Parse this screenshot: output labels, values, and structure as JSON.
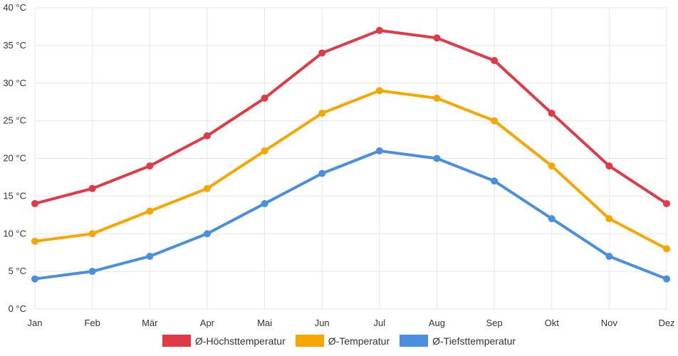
{
  "chart_data": {
    "type": "line",
    "categories": [
      "Jan",
      "Feb",
      "Mär",
      "Apr",
      "Mai",
      "Jun",
      "Jul",
      "Aug",
      "Sep",
      "Okt",
      "Nov",
      "Dez"
    ],
    "series": [
      {
        "name": "Ø-Höchsttemperatur",
        "color": "#e03a45",
        "values": [
          14,
          16,
          19,
          23,
          28,
          34,
          37,
          36,
          33,
          26,
          19,
          14
        ]
      },
      {
        "name": "Ø-Temperatur",
        "color": "#f7a600",
        "values": [
          9,
          10,
          13,
          16,
          21,
          26,
          29,
          28,
          25,
          19,
          12,
          8
        ]
      },
      {
        "name": "Ø-Tiefsttemperatur",
        "color": "#4a8fdf",
        "values": [
          4,
          5,
          7,
          10,
          14,
          18,
          21,
          20,
          17,
          12,
          7,
          4
        ]
      }
    ],
    "y_ticks": [
      "0 °C",
      "5 °C",
      "10 °C",
      "15 °C",
      "20 °C",
      "25 °C",
      "30 °C",
      "35 °C",
      "40 °C"
    ],
    "ylim": [
      0,
      40
    ],
    "grid": true,
    "legend_position": "bottom"
  }
}
